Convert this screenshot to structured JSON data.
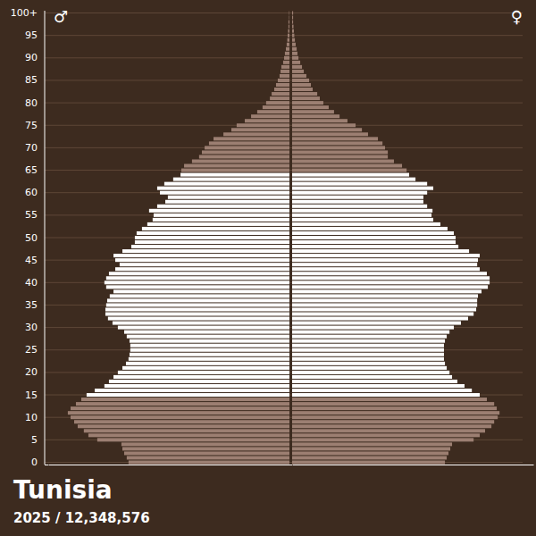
{
  "chart_data": {
    "type": "bar",
    "orientation": "horizontal",
    "grid": true,
    "tick_labels": "y",
    "title": "Tunisia",
    "subtitle": "2025 / 12,348,576",
    "categories": [
      "0",
      null,
      null,
      null,
      null,
      "5",
      null,
      null,
      null,
      null,
      "10",
      null,
      null,
      null,
      null,
      "15",
      null,
      null,
      null,
      null,
      "20",
      null,
      null,
      null,
      null,
      "25",
      null,
      null,
      null,
      null,
      "30",
      null,
      null,
      null,
      null,
      "35",
      null,
      null,
      null,
      null,
      "40",
      null,
      null,
      null,
      null,
      "45",
      null,
      null,
      null,
      null,
      "50",
      null,
      null,
      null,
      null,
      "55",
      null,
      null,
      null,
      null,
      "60",
      null,
      null,
      null,
      null,
      "65",
      null,
      null,
      null,
      null,
      "70",
      null,
      null,
      null,
      null,
      "75",
      null,
      null,
      null,
      null,
      "80",
      null,
      null,
      null,
      null,
      "85",
      null,
      null,
      null,
      null,
      "90",
      null,
      null,
      null,
      null,
      "95",
      null,
      null,
      null,
      null,
      "100+"
    ],
    "xlim": [
      0,
      122000
    ],
    "series": [
      {
        "name": "♂",
        "values": [
          81400,
          82300,
          83600,
          84500,
          85000,
          97200,
          101700,
          104000,
          107100,
          108900,
          110700,
          112100,
          110700,
          108000,
          105300,
          102600,
          98500,
          93600,
          91300,
          89000,
          86800,
          84500,
          82700,
          81400,
          80900,
          80500,
          80500,
          80900,
          82300,
          83600,
          86800,
          89500,
          91800,
          93100,
          93100,
          92700,
          92200,
          90900,
          89000,
          92700,
          93600,
          92700,
          91300,
          88100,
          85900,
          88100,
          89000,
          84500,
          80000,
          78200,
          78200,
          77300,
          74600,
          71900,
          69200,
          68700,
          71000,
          66900,
          62800,
          61500,
          65500,
          66900,
          63300,
          58800,
          55100,
          54700,
          53300,
          49300,
          45700,
          44300,
          42900,
          40700,
          38400,
          33400,
          29400,
          26700,
          22600,
          19400,
          16300,
          13600,
          11800,
          9900,
          9000,
          7700,
          6800,
          5900,
          5000,
          4500,
          4100,
          3200,
          2700,
          2300,
          1800,
          1400,
          1100,
          900,
          700,
          500,
          500,
          200,
          200
        ],
        "colors": [
          "#9c7f72",
          "#9c7f72",
          "#9c7f72",
          "#9c7f72",
          "#9c7f72",
          "#9c7f72",
          "#9c7f72",
          "#9c7f72",
          "#9c7f72",
          "#9c7f72",
          "#9c7f72",
          "#9c7f72",
          "#9c7f72",
          "#9c7f72",
          "#9c7f72",
          "#ffffff",
          "#ffffff",
          "#ffffff",
          "#ffffff",
          "#ffffff",
          "#ffffff",
          "#ffffff",
          "#ffffff",
          "#ffffff",
          "#ffffff",
          "#ffffff",
          "#ffffff",
          "#ffffff",
          "#ffffff",
          "#ffffff",
          "#ffffff",
          "#ffffff",
          "#ffffff",
          "#ffffff",
          "#ffffff",
          "#ffffff",
          "#ffffff",
          "#ffffff",
          "#ffffff",
          "#ffffff",
          "#ffffff",
          "#ffffff",
          "#ffffff",
          "#ffffff",
          "#ffffff",
          "#ffffff",
          "#ffffff",
          "#ffffff",
          "#ffffff",
          "#ffffff",
          "#ffffff",
          "#ffffff",
          "#ffffff",
          "#ffffff",
          "#ffffff",
          "#ffffff",
          "#ffffff",
          "#ffffff",
          "#ffffff",
          "#ffffff",
          "#ffffff",
          "#ffffff",
          "#ffffff",
          "#ffffff",
          "#ffffff",
          "#9c7f72",
          "#9c7f72",
          "#9c7f72",
          "#9c7f72",
          "#9c7f72",
          "#9c7f72",
          "#9c7f72",
          "#9c7f72",
          "#9c7f72",
          "#9c7f72",
          "#9c7f72",
          "#9c7f72",
          "#9c7f72",
          "#9c7f72",
          "#9c7f72",
          "#9c7f72",
          "#9c7f72",
          "#9c7f72",
          "#9c7f72",
          "#9c7f72",
          "#9c7f72",
          "#9c7f72",
          "#9c7f72",
          "#9c7f72",
          "#9c7f72",
          "#9c7f72",
          "#9c7f72",
          "#9c7f72",
          "#9c7f72",
          "#9c7f72",
          "#9c7f72",
          "#9c7f72",
          "#9c7f72",
          "#9c7f72",
          "#9c7f72",
          "#9c7f72"
        ]
      },
      {
        "name": "♀",
        "values": [
          77300,
          78200,
          79100,
          80000,
          80900,
          91800,
          94900,
          97600,
          100800,
          102200,
          104000,
          104900,
          103500,
          102200,
          98500,
          94900,
          90900,
          87200,
          83600,
          80900,
          79600,
          78200,
          77300,
          76800,
          76800,
          76800,
          76800,
          77300,
          78200,
          79600,
          81800,
          85400,
          89000,
          91800,
          93100,
          93600,
          93600,
          94000,
          95800,
          99000,
          99900,
          99900,
          98500,
          94900,
          93600,
          94000,
          94900,
          89500,
          84100,
          82700,
          82700,
          81800,
          78600,
          75000,
          71400,
          70500,
          71000,
          68300,
          66400,
          66400,
          68300,
          71400,
          68300,
          62400,
          59200,
          57900,
          55600,
          51500,
          48400,
          48400,
          47000,
          45700,
          43400,
          38400,
          35300,
          32100,
          28000,
          24000,
          21200,
          18500,
          15800,
          14000,
          12700,
          10400,
          9500,
          8600,
          7200,
          5900,
          5000,
          4100,
          3200,
          2700,
          2300,
          1800,
          1400,
          1100,
          900,
          700,
          500,
          500,
          500
        ],
        "colors": [
          "#9c7f72",
          "#9c7f72",
          "#9c7f72",
          "#9c7f72",
          "#9c7f72",
          "#9c7f72",
          "#9c7f72",
          "#9c7f72",
          "#9c7f72",
          "#9c7f72",
          "#9c7f72",
          "#9c7f72",
          "#9c7f72",
          "#9c7f72",
          "#9c7f72",
          "#ffffff",
          "#ffffff",
          "#ffffff",
          "#ffffff",
          "#ffffff",
          "#ffffff",
          "#ffffff",
          "#ffffff",
          "#ffffff",
          "#ffffff",
          "#ffffff",
          "#ffffff",
          "#ffffff",
          "#ffffff",
          "#ffffff",
          "#ffffff",
          "#ffffff",
          "#ffffff",
          "#ffffff",
          "#ffffff",
          "#ffffff",
          "#ffffff",
          "#ffffff",
          "#ffffff",
          "#ffffff",
          "#ffffff",
          "#ffffff",
          "#ffffff",
          "#ffffff",
          "#ffffff",
          "#ffffff",
          "#ffffff",
          "#ffffff",
          "#ffffff",
          "#ffffff",
          "#ffffff",
          "#ffffff",
          "#ffffff",
          "#ffffff",
          "#ffffff",
          "#ffffff",
          "#ffffff",
          "#ffffff",
          "#ffffff",
          "#ffffff",
          "#ffffff",
          "#ffffff",
          "#ffffff",
          "#ffffff",
          "#ffffff",
          "#9c7f72",
          "#9c7f72",
          "#9c7f72",
          "#9c7f72",
          "#9c7f72",
          "#9c7f72",
          "#9c7f72",
          "#9c7f72",
          "#9c7f72",
          "#9c7f72",
          "#9c7f72",
          "#9c7f72",
          "#9c7f72",
          "#9c7f72",
          "#9c7f72",
          "#9c7f72",
          "#9c7f72",
          "#9c7f72",
          "#9c7f72",
          "#9c7f72",
          "#9c7f72",
          "#9c7f72",
          "#9c7f72",
          "#9c7f72",
          "#9c7f72",
          "#9c7f72",
          "#9c7f72",
          "#9c7f72",
          "#9c7f72",
          "#9c7f72",
          "#9c7f72",
          "#9c7f72",
          "#9c7f72",
          "#9c7f72",
          "#9c7f72",
          "#9c7f72"
        ]
      }
    ]
  }
}
